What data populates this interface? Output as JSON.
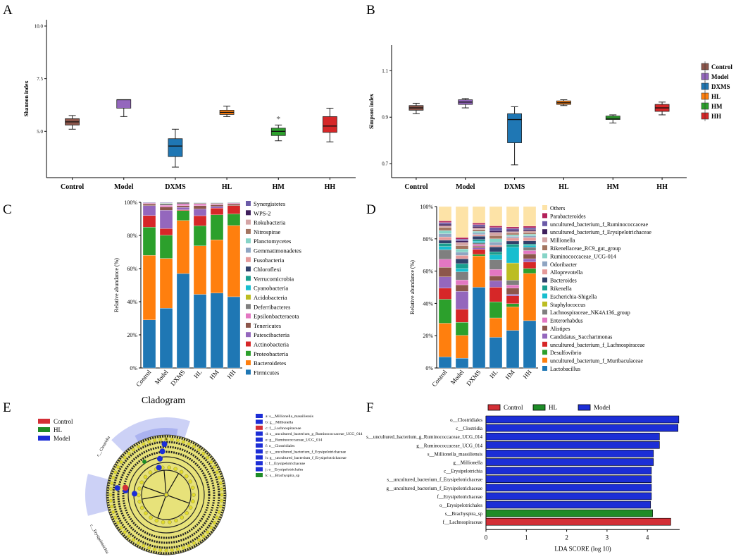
{
  "chart_data": [
    {
      "panel": "A",
      "type": "box",
      "ylabel": "Shannon index",
      "yticks": [
        "10.0",
        "7.5",
        "5.0"
      ],
      "ylim": [
        2.8,
        10.3
      ],
      "categories": [
        "Control",
        "Model",
        "DXMS",
        "HL",
        "HM",
        "HH"
      ],
      "colors": [
        "#8c564b",
        "#9467bd",
        "#1f77b4",
        "#ff7f0e",
        "#2ca02c",
        "#d62728"
      ],
      "boxes": [
        {
          "min": 5.1,
          "q1": 5.3,
          "med": 5.45,
          "q3": 5.6,
          "max": 5.75
        },
        {
          "min": 5.7,
          "q1": 6.1,
          "med": 6.5,
          "q3": 6.5,
          "max": 6.5
        },
        {
          "min": 3.3,
          "q1": 3.8,
          "med": 4.3,
          "q3": 4.65,
          "max": 5.1
        },
        {
          "min": 5.7,
          "q1": 5.8,
          "med": 5.9,
          "q3": 6.0,
          "max": 6.2
        },
        {
          "min": 4.55,
          "q1": 4.8,
          "med": 5.0,
          "q3": 5.15,
          "max": 5.3
        },
        {
          "min": 4.5,
          "q1": 4.95,
          "med": 5.25,
          "q3": 5.7,
          "max": 6.1
        }
      ],
      "annotation": {
        "category": "HM",
        "text": "*"
      }
    },
    {
      "panel": "B",
      "type": "box",
      "ylabel": "Simpson index",
      "yticks": [
        "1.1",
        "0.9",
        "0.7"
      ],
      "ylim": [
        0.64,
        1.21
      ],
      "categories": [
        "Control",
        "Model",
        "DXMS",
        "HL",
        "HM",
        "HH"
      ],
      "colors": [
        "#8c564b",
        "#9467bd",
        "#1f77b4",
        "#ff7f0e",
        "#2ca02c",
        "#d62728"
      ],
      "boxes": [
        {
          "min": 0.915,
          "q1": 0.93,
          "med": 0.94,
          "q3": 0.95,
          "max": 0.96
        },
        {
          "min": 0.94,
          "q1": 0.955,
          "med": 0.965,
          "q3": 0.975,
          "max": 0.98
        },
        {
          "min": 0.695,
          "q1": 0.79,
          "med": 0.89,
          "q3": 0.915,
          "max": 0.945
        },
        {
          "min": 0.95,
          "q1": 0.955,
          "med": 0.962,
          "q3": 0.97,
          "max": 0.975
        },
        {
          "min": 0.875,
          "q1": 0.89,
          "med": 0.895,
          "q3": 0.905,
          "max": 0.91
        },
        {
          "min": 0.91,
          "q1": 0.925,
          "med": 0.94,
          "q3": 0.955,
          "max": 0.965
        }
      ],
      "legend": [
        "Control",
        "Model",
        "DXMS",
        "HL",
        "HM",
        "HH"
      ]
    },
    {
      "panel": "C",
      "type": "stacked-bar",
      "ylabel": "Relative abundance (%)",
      "yticks": [
        "100%",
        "80%",
        "60%",
        "40%",
        "20%",
        "0%"
      ],
      "categories": [
        "Control",
        "Model",
        "DXMS",
        "HL",
        "HM",
        "HH"
      ],
      "series": [
        {
          "name": "Firmicutes",
          "color": "#1f77b4",
          "values": [
            29,
            36,
            57,
            44,
            45,
            43
          ]
        },
        {
          "name": "Bacteroidetes",
          "color": "#ff7f0e",
          "values": [
            39,
            30,
            32,
            29,
            32,
            43
          ]
        },
        {
          "name": "Proteobacteria",
          "color": "#2ca02c",
          "values": [
            17,
            14,
            6,
            12,
            15,
            7
          ]
        },
        {
          "name": "Actinobacteria",
          "color": "#d62728",
          "values": [
            7,
            4,
            0.5,
            6,
            4,
            5
          ]
        },
        {
          "name": "Patescibacteria",
          "color": "#9467bd",
          "values": [
            6,
            11,
            1.5,
            4,
            1,
            0
          ]
        },
        {
          "name": "Tenericutes",
          "color": "#8c564b",
          "values": [
            1,
            2,
            1,
            2,
            1,
            1
          ]
        },
        {
          "name": "Epsilonbacteraeota",
          "color": "#e377c2",
          "values": [
            0.5,
            1,
            1,
            1,
            0.5,
            0.5
          ]
        },
        {
          "name": "Deferribacteres",
          "color": "#7f7f7f",
          "values": [
            0.2,
            1,
            1,
            0.5,
            0.5,
            0.3
          ]
        },
        {
          "name": "Acidobacteria",
          "color": "#bcbd22",
          "values": [
            0,
            0.2,
            0,
            0.2,
            0.2,
            0.1
          ]
        },
        {
          "name": "Cyanobacteria",
          "color": "#17becf",
          "values": [
            0,
            0.2,
            0,
            0.1,
            0.1,
            0.1
          ]
        },
        {
          "name": "Verrucomicrobia",
          "color": "#1a9e8f",
          "values": [
            0,
            0.1,
            0,
            0.1,
            0.1,
            0
          ]
        },
        {
          "name": "Chloroflexi",
          "color": "#31416b",
          "values": [
            0,
            0,
            0,
            0,
            0,
            0
          ]
        },
        {
          "name": "Fusobacteria",
          "color": "#e59a9a",
          "values": [
            0,
            0,
            0,
            0,
            0,
            0
          ]
        },
        {
          "name": "Gemmatimonadetes",
          "color": "#8fa5c2",
          "values": [
            0,
            0,
            0,
            0,
            0,
            0
          ]
        },
        {
          "name": "Planctomycetes",
          "color": "#86d4c7",
          "values": [
            0,
            0,
            0,
            0,
            0,
            0
          ]
        },
        {
          "name": "Nitrospirae",
          "color": "#a37560",
          "values": [
            0,
            0,
            0,
            0,
            0,
            0
          ]
        },
        {
          "name": "Rokubacteria",
          "color": "#d4a5a5",
          "values": [
            0,
            0,
            0,
            0,
            0,
            0
          ]
        },
        {
          "name": "WPS-2",
          "color": "#3f1f5c",
          "values": [
            0,
            0,
            0,
            0,
            0,
            0
          ]
        },
        {
          "name": "Synergistetes",
          "color": "#6b5ba8",
          "values": [
            0.3,
            0.3,
            0,
            0.1,
            0.1,
            0
          ]
        }
      ]
    },
    {
      "panel": "D",
      "type": "stacked-bar",
      "ylabel": "Relative abundance (%)",
      "yticks": [
        "100%",
        "80%",
        "60%",
        "40%",
        "20%",
        "0%"
      ],
      "categories": [
        "Control",
        "Model",
        "DXMS",
        "HL",
        "HM",
        "HH"
      ],
      "series": [
        {
          "name": "Lactobacillus",
          "color": "#1f77b4",
          "values": [
            7,
            6,
            49,
            19,
            24,
            29
          ]
        },
        {
          "name": "uncultured_bacterium_f_Muribaculaceae",
          "color": "#ff7f0e",
          "values": [
            21,
            14,
            19,
            12,
            15,
            29
          ]
        },
        {
          "name": "Desulfovibrio",
          "color": "#2ca02c",
          "values": [
            15,
            8,
            1,
            10,
            2,
            3
          ]
        },
        {
          "name": "uncultured_bacterium_f_Lachnospiraceae",
          "color": "#d62728",
          "values": [
            7,
            8,
            3,
            9,
            5,
            4
          ]
        },
        {
          "name": "Candidatus_Saccharimonas",
          "color": "#9467bd",
          "values": [
            7,
            11,
            1,
            4,
            1,
            2
          ]
        },
        {
          "name": "Alistipes",
          "color": "#8c564b",
          "values": [
            6,
            4,
            1,
            3,
            4,
            3
          ]
        },
        {
          "name": "Enterorhabdus",
          "color": "#e377c2",
          "values": [
            5,
            3,
            1,
            4,
            2,
            2
          ]
        },
        {
          "name": "Lachnospiraceae_NK4A136_group",
          "color": "#7f7f7f",
          "values": [
            6,
            5,
            1,
            6,
            3,
            2
          ]
        },
        {
          "name": "Staphylococcus",
          "color": "#bcbd22",
          "values": [
            0,
            0,
            0,
            0,
            11,
            0
          ]
        },
        {
          "name": "Escherichia-Shigella",
          "color": "#17becf",
          "values": [
            2,
            2,
            1,
            3,
            10,
            1
          ]
        },
        {
          "name": "Rikenella",
          "color": "#1a9e8f",
          "values": [
            2,
            3,
            1,
            2,
            2,
            1
          ]
        },
        {
          "name": "Bacteroides",
          "color": "#31416b",
          "values": [
            2,
            3,
            2,
            3,
            2,
            2
          ]
        },
        {
          "name": "Alloprevotella",
          "color": "#e59a9a",
          "values": [
            2,
            2,
            1,
            1,
            2,
            2
          ]
        },
        {
          "name": "Odoribacter",
          "color": "#8fa5c2",
          "values": [
            2,
            2,
            1,
            2,
            1,
            1
          ]
        },
        {
          "name": "Ruminococcaceae_UCG-014",
          "color": "#86d4c7",
          "values": [
            2,
            2,
            1,
            2,
            1,
            1
          ]
        },
        {
          "name": "Rikenellaceae_RC9_gut_group",
          "color": "#a37560",
          "values": [
            2,
            2,
            1,
            2,
            1,
            1
          ]
        },
        {
          "name": "Millionella",
          "color": "#d4a5a5",
          "values": [
            1,
            2,
            1,
            2,
            1,
            1
          ]
        },
        {
          "name": "uncultured_bacterium_f_Erysipelotrichaceae",
          "color": "#3f1f5c",
          "values": [
            1,
            1,
            1,
            1,
            1,
            1
          ]
        },
        {
          "name": "uncultured_bacterium_f_Ruminococcaceae",
          "color": "#6b5ba8",
          "values": [
            1,
            1,
            1,
            2,
            1,
            1
          ]
        },
        {
          "name": "Parabacteroides",
          "color": "#b3215a",
          "values": [
            1,
            1,
            1,
            1,
            1,
            1
          ]
        },
        {
          "name": "Others",
          "color": "#fde3a7",
          "values": [
            9,
            19,
            10,
            12,
            13,
            12
          ]
        }
      ]
    },
    {
      "panel": "F",
      "type": "bar-horizontal",
      "xlabel": "LDA SCORE (log 10)",
      "xticks": [
        "0",
        "1",
        "2",
        "3",
        "4"
      ],
      "xlim": [
        0,
        4.8
      ],
      "legend": [
        {
          "name": "Control",
          "color": "#d32f36"
        },
        {
          "name": "HL",
          "color": "#1e8c27"
        },
        {
          "name": "Model",
          "color": "#1c2ed6"
        }
      ],
      "bars": [
        {
          "label": "o__Clostridiales",
          "value": 4.78,
          "group": "Model"
        },
        {
          "label": "c__Clostridia",
          "value": 4.76,
          "group": "Model"
        },
        {
          "label": "s__uncultured_bacterium_g_Ruminococcaceae_UCG_014",
          "value": 4.3,
          "group": "Model"
        },
        {
          "label": "g__Ruminococcaceae_UCG_014",
          "value": 4.3,
          "group": "Model"
        },
        {
          "label": "s__Millionella_massiliensis",
          "value": 4.15,
          "group": "Model"
        },
        {
          "label": "g__Millionella",
          "value": 4.15,
          "group": "Model"
        },
        {
          "label": "c__Erysipelotrichia",
          "value": 4.1,
          "group": "Model"
        },
        {
          "label": "s__uncultured_bacterium_f_Erysipelotrichaceae",
          "value": 4.1,
          "group": "Model"
        },
        {
          "label": "g__uncultured_bacterium_f_Erysipelotrichaceae",
          "value": 4.1,
          "group": "Model"
        },
        {
          "label": "f__Erysipelotrichaceae",
          "value": 4.1,
          "group": "Model"
        },
        {
          "label": "o__Erysipelotrichales",
          "value": 4.08,
          "group": "Model"
        },
        {
          "label": "s__Brachyspira_sp",
          "value": 4.13,
          "group": "HL"
        },
        {
          "label": "f__Lachnospiraceae",
          "value": 4.58,
          "group": "Control"
        }
      ]
    }
  ],
  "panel_labels": {
    "a": "A",
    "b": "B",
    "c": "C",
    "d": "D",
    "e": "E",
    "f": "F"
  },
  "cladogram": {
    "title": "Cladogram",
    "legend": [
      {
        "name": "Control",
        "color": "#d32f36"
      },
      {
        "name": "HL",
        "color": "#1e8c27"
      },
      {
        "name": "Model",
        "color": "#1c2ed6"
      }
    ],
    "key": [
      {
        "text": "a: s__Millionella_massiliensis",
        "color": "#1c2ed6"
      },
      {
        "text": "b: g__Millionella",
        "color": "#1c2ed6"
      },
      {
        "text": "c: f__Lachnospiraceae",
        "color": "#d32f36"
      },
      {
        "text": "d: s__uncultured_bacterium_g_Ruminococcaceae_UCG_014",
        "color": "#1c2ed6"
      },
      {
        "text": "e: g__Ruminococcaceae_UCG_014",
        "color": "#1c2ed6"
      },
      {
        "text": "f: o__Clostridiales",
        "color": "#1c2ed6"
      },
      {
        "text": "g: s__uncultured_bacterium_f_Erysipelotrichaceae",
        "color": "#1c2ed6"
      },
      {
        "text": "h: g__uncultured_bacterium_f_Erysipelotrichaceae",
        "color": "#1c2ed6"
      },
      {
        "text": "i: f__Erysipelotrichaceae",
        "color": "#1c2ed6"
      },
      {
        "text": "j: o__Erysipelotrichales",
        "color": "#1c2ed6"
      },
      {
        "text": "k: s__Brachyspira_sp",
        "color": "#1e8c27"
      }
    ],
    "arc_labels": [
      "c__Clostridia",
      "c__Erysipelotrichia"
    ],
    "node_letter": "k"
  }
}
